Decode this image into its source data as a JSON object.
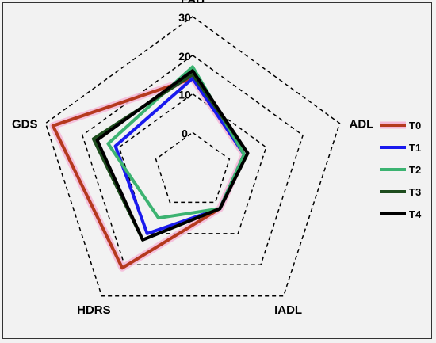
{
  "chart_data": {
    "type": "radar",
    "axes": [
      "FAB",
      "ADL",
      "IADL",
      "HDRS",
      "GDS"
    ],
    "rlim": [
      -10,
      30
    ],
    "ticks": [
      0,
      10,
      20,
      30
    ],
    "tick_labels": [
      "0",
      "10",
      "20",
      "30"
    ],
    "grid": "dashed pentagons",
    "legend_position": "right",
    "series": [
      {
        "name": "T0",
        "color": "#b5391e",
        "glow": "#f4b8d8",
        "values": [
          14,
          4,
          2,
          21,
          28
        ]
      },
      {
        "name": "T1",
        "color": "#1a1aee",
        "glow": null,
        "values": [
          14,
          4,
          2,
          10,
          11
        ]
      },
      {
        "name": "T2",
        "color": "#3cb371",
        "glow": null,
        "values": [
          17,
          4,
          2,
          5,
          13
        ]
      },
      {
        "name": "T3",
        "color": "#1e4d1e",
        "glow": null,
        "values": [
          15,
          5,
          2,
          12,
          17
        ]
      },
      {
        "name": "T4",
        "color": "#000000",
        "glow": null,
        "values": [
          16,
          5,
          2,
          12,
          16
        ]
      }
    ]
  }
}
